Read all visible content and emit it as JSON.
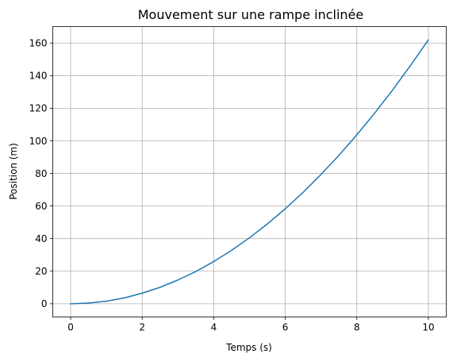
{
  "chart_data": {
    "type": "line",
    "title": "Mouvement sur une rampe inclinée",
    "xlabel": "Temps (s)",
    "ylabel": "Position (m)",
    "xlim": [
      -0.5,
      10.5
    ],
    "ylim": [
      -8.1,
      170.1
    ],
    "xticks": [
      0,
      2,
      4,
      6,
      8,
      10
    ],
    "yticks": [
      0,
      20,
      40,
      60,
      80,
      100,
      120,
      140,
      160
    ],
    "grid": true,
    "series": [
      {
        "color": "#1f77b4",
        "x": [
          0,
          0.5,
          1,
          1.5,
          2,
          2.5,
          3,
          3.5,
          4,
          4.5,
          5,
          5.5,
          6,
          6.5,
          7,
          7.5,
          8,
          8.5,
          9,
          9.5,
          10
        ],
        "y": [
          0,
          0.4,
          1.6,
          3.6,
          6.5,
          10.1,
          14.6,
          19.8,
          25.9,
          32.8,
          40.5,
          49.0,
          58.3,
          68.4,
          79.4,
          91.1,
          103.7,
          117.0,
          131.2,
          146.2,
          162.0
        ]
      }
    ]
  }
}
